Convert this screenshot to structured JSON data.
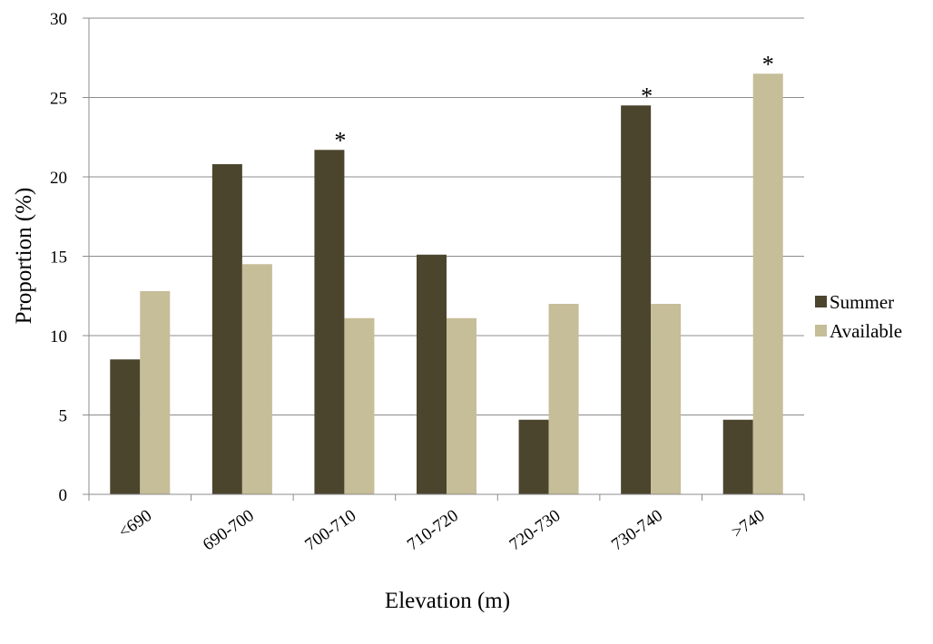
{
  "chart_data": {
    "type": "bar",
    "title": "",
    "xlabel": "Elevation (m)",
    "ylabel": "Proportion (%)",
    "ylim": [
      0,
      30
    ],
    "yticks": [
      "0",
      "5",
      "10",
      "15",
      "20",
      "25",
      "30"
    ],
    "grid": true,
    "legend_position": "right",
    "categories": [
      "<690",
      "690-700",
      "700-710",
      "710-720",
      "720-730",
      "730-740",
      ">740"
    ],
    "series": [
      {
        "name": "Summer",
        "color": "#4b452e",
        "values": [
          8.5,
          20.8,
          21.7,
          15.1,
          4.7,
          24.5,
          4.7
        ],
        "markers": [
          "",
          "",
          "*",
          "",
          "",
          "*",
          ""
        ]
      },
      {
        "name": "Available",
        "color": "#c6bd99",
        "values": [
          12.8,
          14.5,
          11.1,
          11.1,
          12.0,
          12.0,
          26.5
        ],
        "markers": [
          "",
          "",
          "",
          "",
          "",
          "",
          "*"
        ]
      }
    ]
  }
}
